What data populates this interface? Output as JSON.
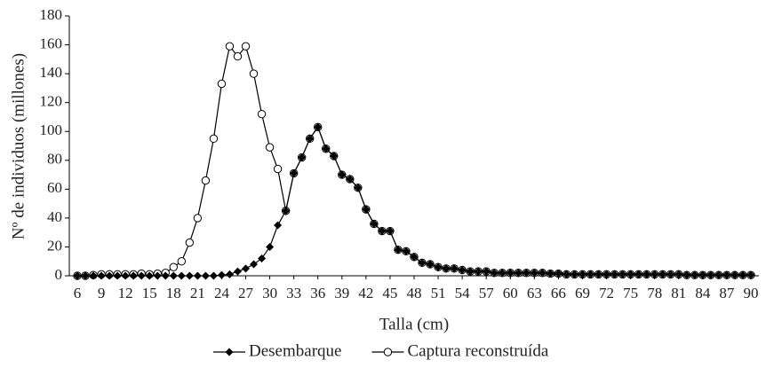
{
  "chart_data": {
    "type": "line",
    "x_label": "Talla (cm)",
    "y_label": "Nº de individuos (millones)",
    "x": [
      6,
      7,
      8,
      9,
      10,
      11,
      12,
      13,
      14,
      15,
      16,
      17,
      18,
      19,
      20,
      21,
      22,
      23,
      24,
      25,
      26,
      27,
      28,
      29,
      30,
      31,
      32,
      33,
      34,
      35,
      36,
      37,
      38,
      39,
      40,
      41,
      42,
      43,
      44,
      45,
      46,
      47,
      48,
      49,
      50,
      51,
      52,
      53,
      54,
      55,
      56,
      57,
      58,
      59,
      60,
      61,
      62,
      63,
      64,
      65,
      66,
      67,
      68,
      69,
      70,
      71,
      72,
      73,
      74,
      75,
      76,
      77,
      78,
      79,
      80,
      81,
      82,
      83,
      84,
      85,
      86,
      87,
      88,
      89,
      90
    ],
    "series": [
      {
        "name": "Captura reconstruída",
        "color": "#000000",
        "marker": "open-circle",
        "values": [
          0,
          0,
          0.5,
          1,
          1,
          1,
          1,
          1,
          1.5,
          1,
          1.5,
          2,
          6,
          10,
          23,
          40,
          66,
          95,
          133,
          159,
          152,
          159,
          140,
          112,
          89,
          74,
          45,
          71,
          82,
          95,
          103,
          88,
          83,
          70,
          67,
          61,
          46,
          36,
          31,
          31,
          18,
          17,
          13,
          9,
          8,
          6,
          5,
          5,
          4,
          3,
          3,
          3,
          2,
          2,
          2,
          2,
          2,
          2,
          2,
          1.5,
          1.5,
          1,
          1,
          1,
          1,
          1,
          1,
          1,
          1,
          1,
          1,
          1,
          1,
          1,
          1,
          1,
          0.5,
          0.5,
          0.5,
          0.5,
          0.5,
          0.5,
          0.5,
          0.5,
          0.5
        ]
      },
      {
        "name": "Desembarque",
        "color": "#000000",
        "marker": "diamond",
        "values": [
          0,
          0,
          0,
          0,
          0,
          0,
          0,
          0,
          0,
          0,
          0,
          0,
          0,
          0,
          0,
          0,
          0,
          0,
          0.5,
          1,
          3,
          5,
          8,
          12,
          20,
          35,
          45,
          71,
          82,
          95,
          103,
          88,
          83,
          70,
          67,
          61,
          46,
          36,
          31,
          31,
          18,
          17,
          13,
          9,
          8,
          6,
          5,
          5,
          4,
          3,
          3,
          3,
          2,
          2,
          2,
          2,
          2,
          2,
          2,
          1.5,
          1.5,
          1,
          1,
          1,
          1,
          1,
          1,
          1,
          1,
          1,
          1,
          1,
          1,
          1,
          1,
          1,
          0.5,
          0.5,
          0.5,
          0.5,
          0.5,
          0.5,
          0.5,
          0.5,
          0.5
        ]
      }
    ],
    "xlim": [
      5,
      91
    ],
    "xticks": [
      6,
      9,
      12,
      15,
      18,
      21,
      24,
      27,
      30,
      33,
      36,
      39,
      42,
      45,
      48,
      51,
      54,
      57,
      60,
      63,
      66,
      69,
      72,
      75,
      78,
      81,
      84,
      87,
      90
    ],
    "ylim": [
      0,
      180
    ],
    "yticks": [
      0,
      20,
      40,
      60,
      80,
      100,
      120,
      140,
      160,
      180
    ],
    "legend_order": [
      1,
      0
    ]
  }
}
